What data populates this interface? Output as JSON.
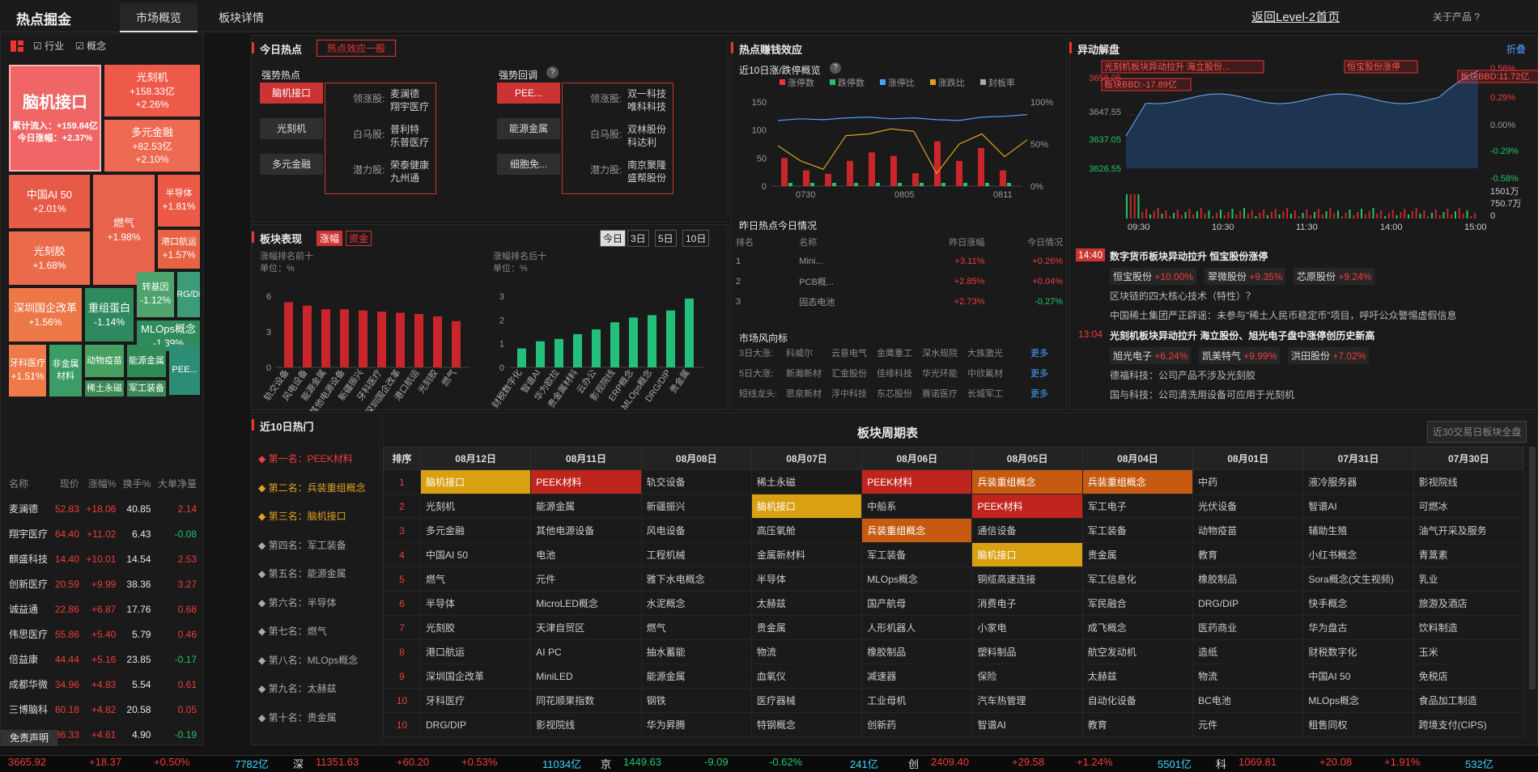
{
  "header": {
    "brand": "热点掘金",
    "tab_overview": "市场概览",
    "tab_detail": "板块详情",
    "back_link": "返回Level-2首页",
    "about": "关于产品 ?"
  },
  "filters": {
    "industry": "行业",
    "concept": "概念"
  },
  "tiles": [
    {
      "name": "脑机接口",
      "line1": "累计流入：+159.84亿",
      "line2": "今日涨幅：+2.37%"
    },
    {
      "name": "光刻机",
      "line1": "+158.33亿",
      "line2": "+2.26%"
    },
    {
      "name": "多元金融",
      "line1": "+82.53亿",
      "line2": "+2.10%"
    },
    {
      "name": "中国AI 50",
      "line1": "+2.01%"
    },
    {
      "name": "燃气",
      "line1": "+1.98%"
    },
    {
      "name": "半导体",
      "line1": "+1.81%"
    },
    {
      "name": "港口航运",
      "line1": "+1.57%"
    },
    {
      "name": "光刻胶",
      "line1": "+1.68%"
    },
    {
      "name": "转基因",
      "line1": "-1.12%"
    },
    {
      "name": "DRG/DIP",
      "line1": ""
    },
    {
      "name": "深圳国企改革",
      "line1": "+1.56%"
    },
    {
      "name": "重组蛋白",
      "line1": "-1.14%"
    },
    {
      "name": "MLOps概念",
      "line1": "-1.39%"
    },
    {
      "name": "牙科医疗",
      "line1": "+1.51%"
    },
    {
      "name": "非金属材料",
      "line1": ""
    },
    {
      "name": "动物疫苗",
      "line1": ""
    },
    {
      "name": "能源金属",
      "line1": ""
    },
    {
      "name": "PEE...",
      "line1": ""
    },
    {
      "name": "稀土永磁",
      "line1": ""
    },
    {
      "name": "军工装备",
      "line1": ""
    }
  ],
  "stock_table": {
    "headers": [
      "名称",
      "现价",
      "涨幅%",
      "换手%",
      "大单净量"
    ],
    "rows": [
      [
        "麦澜德",
        "52.83",
        "+18.06",
        "40.85",
        "2.14"
      ],
      [
        "翔宇医疗",
        "64.40",
        "+11.02",
        "6.43",
        "-0.08"
      ],
      [
        "麒盛科技",
        "14.40",
        "+10.01",
        "14.54",
        "2.53"
      ],
      [
        "创新医疗",
        "20.59",
        "+9.99",
        "38.36",
        "3.27"
      ],
      [
        "诚益通",
        "22.86",
        "+6.87",
        "17.76",
        "0.68"
      ],
      [
        "伟思医疗",
        "55.86",
        "+5.40",
        "5.79",
        "0.46"
      ],
      [
        "倍益康",
        "44.44",
        "+5.16",
        "23.85",
        "-0.17"
      ],
      [
        "成都华微",
        "34.96",
        "+4.83",
        "5.54",
        "0.61"
      ],
      [
        "三博脑科",
        "60.18",
        "+4.82",
        "20.58",
        "0.05"
      ],
      [
        "博拓生物",
        "36.33",
        "+4.61",
        "4.90",
        "-0.19"
      ]
    ]
  },
  "disclaimer": "免责声明",
  "today_hot": {
    "title": "今日热点",
    "badge": "热点效应一般",
    "strong_label": "强势热点",
    "pullback_label": "强势回调",
    "strong": {
      "items": [
        "脑机接口",
        "光刻机",
        "多元金融"
      ],
      "roles": [
        "领涨股:",
        "白马股:",
        "潜力股:"
      ],
      "stocks": [
        [
          "麦澜德",
          "翔宇医疗"
        ],
        [
          "普利特",
          "乐普医疗"
        ],
        [
          "荣泰健康",
          "九州通"
        ]
      ]
    },
    "pullback": {
      "items": [
        "PEE...",
        "能源金属",
        "细胞免..."
      ],
      "roles": [
        "领涨股:",
        "白马股:",
        "潜力股:"
      ],
      "stocks": [
        [
          "双一科技",
          "唯科科技"
        ],
        [
          "双林股份",
          "科达利"
        ],
        [
          "南京聚隆",
          "盛帮股份"
        ]
      ]
    }
  },
  "sector_perf": {
    "title": "板块表现",
    "tab_up": "涨幅",
    "tab_fund": "资金",
    "periods": [
      "今日",
      "3日",
      "5日",
      "10日"
    ],
    "top_label": "涨幅排名前十",
    "bottom_label": "涨幅排名后十",
    "unit": "单位：%"
  },
  "money_effect": {
    "title": "热点赚钱效应",
    "sub": "近10日涨/跌停概览",
    "legend": [
      "涨停数",
      "跌停数",
      "涨停比",
      "涨跌比",
      "封板率"
    ],
    "yl": [
      "150",
      "100",
      "50",
      "0"
    ],
    "yr": [
      "100%",
      "50%",
      "0%"
    ],
    "xl": [
      "0730",
      "0805",
      "0811"
    ]
  },
  "yesterday": {
    "title": "昨日热点今日情况",
    "headers": [
      "排名",
      "名称",
      "昨日涨幅",
      "今日情况"
    ],
    "rows": [
      [
        "1",
        "Mini...",
        "+3.11%",
        "+0.26%"
      ],
      [
        "2",
        "PCB概...",
        "+2.85%",
        "+0.04%"
      ],
      [
        "3",
        "固态电池",
        "+2.73%",
        "-0.27%"
      ]
    ]
  },
  "wind": {
    "title": "市场风向标",
    "more": "更多",
    "rows": [
      {
        "label": "3日大涨:",
        "items": [
          "科威尔",
          "云意电气",
          "金鹰重工",
          "深水规院",
          "大族激光"
        ]
      },
      {
        "label": "5日大涨:",
        "items": [
          "新瀚新材",
          "汇金股份",
          "佳缘科技",
          "华光环能",
          "中欣氟材"
        ]
      },
      {
        "label": "短线龙头:",
        "items": [
          "思泉新材",
          "浮中科技",
          "东芯股份",
          "赛诺医疗",
          "长城军工"
        ]
      }
    ]
  },
  "anomaly": {
    "title": "异动解盘",
    "collapse": "折叠",
    "y_left": [
      "3658.05",
      "3647.55",
      "3637.05",
      "3626.55"
    ],
    "y_right": [
      "0.58%",
      "0.29%",
      "0.00%",
      "-0.29%",
      "-0.58%"
    ],
    "vol": [
      "1501万",
      "750.7万",
      "0"
    ],
    "x": [
      "09:30",
      "10:30",
      "11:30",
      "14:00",
      "15:00"
    ],
    "popups": [
      "光刻机板块异动拉升 海立股份...",
      "恒宝股份涨停",
      "板块BBD:11.72亿",
      "板块BBD:-17.89亿"
    ],
    "news": [
      {
        "time": "14:40",
        "title": "数字货币板块异动拉升 恒宝股份涨停",
        "chips": [
          [
            "恒宝股份",
            "+10.00%"
          ],
          [
            "翠微股份",
            "+9.35%"
          ],
          [
            "芯原股份",
            "+9.24%"
          ]
        ],
        "lines": [
          "区块链的四大核心技术（特性）？",
          "中国稀土集团严正辟谣：未参与\"稀土人民币稳定币\"项目，呼吁公众警惕虚假信息"
        ]
      },
      {
        "time": "13:04",
        "title": "光刻机板块异动拉升 海立股份、旭光电子盘中涨停创历史新高",
        "chips": [
          [
            "旭光电子",
            "+6.24%"
          ],
          [
            "凯美特气",
            "+9.99%"
          ],
          [
            "洪田股份",
            "+7.02%"
          ]
        ],
        "lines": [
          "德福科技：公司产品不涉及光刻胶",
          "国与科技：公司清洗用设备可应用于光刻机"
        ]
      }
    ]
  },
  "hot10": {
    "title": "近10日热门",
    "items": [
      "◆ 第一名：PEEK材料",
      "◆ 第二名：兵装重组概念",
      "◆ 第三名：脑机接口",
      "◆ 第四名：军工装备",
      "◆ 第五名：能源金属",
      "◆ 第六名：半导体",
      "◆ 第七名：燃气",
      "◆ 第八名：MLOps概念",
      "◆ 第九名：太赫兹",
      "◆ 第十名：贵金属"
    ]
  },
  "weekly": {
    "title": "板块周期表",
    "btn": "近30交易日板块全盘",
    "headers": [
      "排序",
      "08月12日",
      "08月11日",
      "08月08日",
      "08月07日",
      "08月06日",
      "08月05日",
      "08月04日",
      "08月01日",
      "07月31日",
      "07月30日"
    ],
    "rows": [
      [
        "1",
        "脑机接口",
        "PEEK材料",
        "轨交设备",
        "稀土永磁",
        "PEEK材料",
        "兵装重组概念",
        "兵装重组概念",
        "中药",
        "液冷服务器",
        "影视院线"
      ],
      [
        "2",
        "光刻机",
        "能源金属",
        "新疆振兴",
        "脑机接口",
        "中船系",
        "PEEK材料",
        "军工电子",
        "光伏设备",
        "智谱AI",
        "可燃冰"
      ],
      [
        "3",
        "多元金融",
        "其他电源设备",
        "风电设备",
        "高压氧舱",
        "兵装重组概念",
        "通信设备",
        "军工装备",
        "动物疫苗",
        "辅助生殖",
        "油气开采及服务"
      ],
      [
        "4",
        "中国AI 50",
        "电池",
        "工程机械",
        "金属新材料",
        "军工装备",
        "脑机接口",
        "贵金属",
        "教育",
        "小红书概念",
        "青蒿素"
      ],
      [
        "5",
        "燃气",
        "元件",
        "雅下水电概念",
        "半导体",
        "MLOps概念",
        "铜缆高速连接",
        "军工信息化",
        "橡胶制品",
        "Sora概念(文生视频)",
        "乳业"
      ],
      [
        "6",
        "半导体",
        "MicroLED概念",
        "水泥概念",
        "太赫兹",
        "国产航母",
        "消费电子",
        "军民融合",
        "DRG/DIP",
        "快手概念",
        "旅游及酒店"
      ],
      [
        "7",
        "光刻胶",
        "天津自贸区",
        "燃气",
        "贵金属",
        "人形机器人",
        "小家电",
        "成飞概念",
        "医药商业",
        "华为盘古",
        "饮料制造"
      ],
      [
        "8",
        "港口航运",
        "AI PC",
        "抽水蓄能",
        "物流",
        "橡胶制品",
        "塑料制品",
        "航空发动机",
        "造纸",
        "财税数字化",
        "玉米"
      ],
      [
        "9",
        "深圳国企改革",
        "MiniLED",
        "能源金属",
        "血氧仪",
        "减速器",
        "保险",
        "太赫兹",
        "物流",
        "中国AI 50",
        "免税店"
      ],
      [
        "10",
        "牙科医疗",
        "同花顺果指数",
        "钢铁",
        "医疗器械",
        "工业母机",
        "汽车热管理",
        "自动化设备",
        "BC电池",
        "MLOps概念",
        "食品加工制造"
      ],
      [
        "10",
        "DRG/DIP",
        "影视院线",
        "华为昇腾",
        "特钢概念",
        "创新药",
        "智谱AI",
        "教育",
        "元件",
        "租售同权",
        "跨境支付(CIPS)"
      ]
    ],
    "highlights": {
      "0-1": "h3",
      "0-2": "h1",
      "0-5": "h1",
      "0-6": "h2",
      "0-7": "h2",
      "1-4": "h3",
      "1-6": "h1",
      "2-5": "h2",
      "3-6": "h3"
    }
  },
  "ticker": [
    {
      "v": "3665.92",
      "c": "+18.37",
      "p": "+0.50%",
      "a": "7782亿",
      "n": "深"
    },
    {
      "v": "11351.63",
      "c": "+60.20",
      "p": "+0.53%",
      "a": "11034亿",
      "n": "京"
    },
    {
      "v": "1449.63",
      "c": "-9.09",
      "p": "-0.62%",
      "a": "241亿",
      "n": "创"
    },
    {
      "v": "2409.40",
      "c": "+29.58",
      "p": "+1.24%",
      "a": "5501亿",
      "n": "科"
    },
    {
      "v": "1069.81",
      "c": "+20.08",
      "p": "+1.91%",
      "a": "532亿",
      "n": ""
    }
  ]
}
